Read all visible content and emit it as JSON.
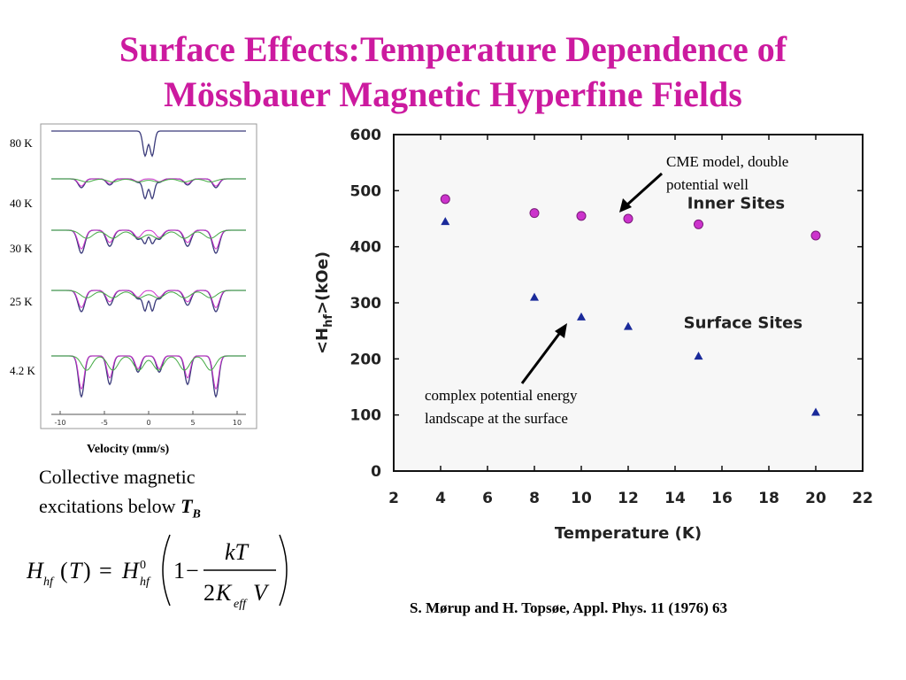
{
  "title_line1": "Surface Effects:Temperature Dependence of",
  "title_line2": "Mössbauer Magnetic Hyperfine Fields",
  "spectra": {
    "temperature_labels": [
      "80 K",
      "40 K",
      "30 K",
      "25 K",
      "4.2 K"
    ],
    "x_ticks": [
      "-10",
      "-5",
      "0",
      "5",
      "10"
    ],
    "xlabel": "Velocity (mm/s)"
  },
  "collective_text_1": "Collective magnetic",
  "collective_text_2": "excitations below ",
  "collective_T": "T",
  "collective_sub": "B",
  "annotation_cme_1": "CME model, double",
  "annotation_cme_2": "potential well",
  "annotation_surface_1": "complex potential energy",
  "annotation_surface_2": "landscape at the surface",
  "citation": "S. Mørup and H. Topsøe, Appl.  Phys. 11 (1976) 63",
  "colors": {
    "title": "#cc1a9f",
    "inner_marker": "#cc33cc",
    "surface_marker": "#1a2a9a"
  },
  "chart_data": {
    "type": "scatter",
    "xlabel": "Temperature (K)",
    "ylabel": "<Hhf>(kOe)",
    "xlim": [
      2,
      22
    ],
    "ylim": [
      0,
      600
    ],
    "x_ticks": [
      2,
      4,
      6,
      8,
      10,
      12,
      14,
      16,
      18,
      20,
      22
    ],
    "y_ticks": [
      0,
      100,
      200,
      300,
      400,
      500,
      600
    ],
    "series": [
      {
        "name": "Inner Sites",
        "marker": "circle",
        "x": [
          4.2,
          8,
          10,
          12,
          15,
          20
        ],
        "y": [
          485,
          460,
          455,
          450,
          440,
          420
        ]
      },
      {
        "name": "Surface Sites",
        "marker": "triangle",
        "x": [
          4.2,
          8,
          10,
          12,
          15,
          20
        ],
        "y": [
          445,
          310,
          275,
          258,
          205,
          105
        ]
      }
    ]
  }
}
